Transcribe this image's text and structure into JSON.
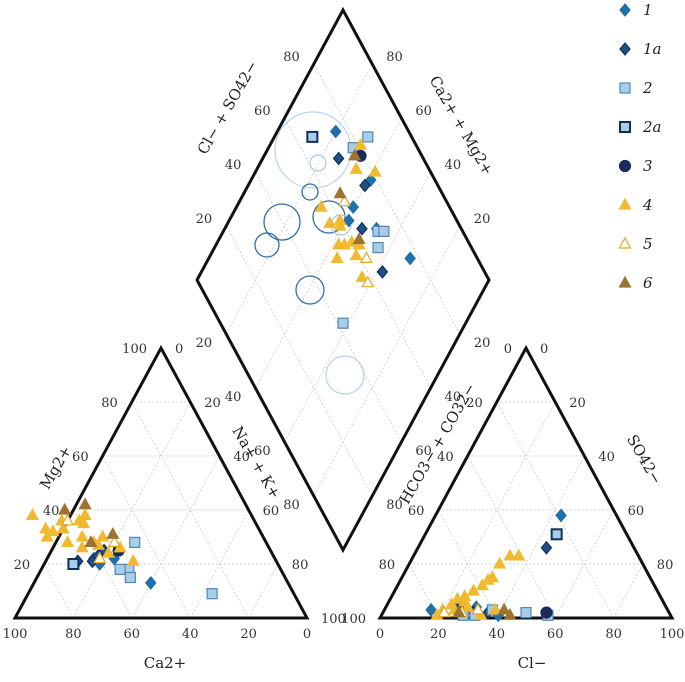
{
  "chart_data": {
    "type": "scatter",
    "diagram": "piper",
    "axis_labels": {
      "mg": "Mg2+",
      "ca": "Ca2+",
      "na_k": "Na+ + K+",
      "hco3_co3": "HCO3− + CO32−",
      "cl": "Cl−",
      "so4": "SO42−",
      "diamond_left": "Cl− + SO42−",
      "diamond_right": "Ca2+ + Mg2+"
    },
    "cation_triangle": {
      "x_ticks": [
        "100",
        "80",
        "60",
        "40",
        "20",
        "0"
      ],
      "left_ticks": [
        "20",
        "40",
        "60",
        "80",
        "100"
      ],
      "right_ticks": [
        "0",
        "20",
        "40",
        "60",
        "80",
        "100"
      ],
      "note": "points given as [Ca2+ %, Mg2+ %]"
    },
    "anion_triangle": {
      "x_ticks": [
        "0",
        "20",
        "40",
        "60",
        "80",
        "100"
      ],
      "left_ticks": [
        "100",
        "80",
        "60",
        "40",
        "20",
        "0"
      ],
      "right_ticks": [
        "100",
        "80",
        "60",
        "40",
        "20",
        "0"
      ],
      "note": "points given as [Cl- %, SO4 2- %]"
    },
    "diamond": {
      "upper_left_ticks": [
        "80",
        "60",
        "40",
        "20"
      ],
      "upper_right_ticks": [
        "80",
        "60",
        "40",
        "20"
      ],
      "lower_left_ticks": [
        "20",
        "40",
        "60",
        "80"
      ],
      "lower_right_ticks": [
        "20",
        "40",
        "60",
        "80"
      ],
      "note": "points given as [Ca+Mg %, Cl+SO4 %]"
    },
    "legend_position": "top-right",
    "series": [
      {
        "name": "1",
        "marker": "diamond",
        "fill": "#1f6fa8",
        "stroke": "#1f6fa8",
        "cation": [
          [
            55,
            22
          ],
          [
            62,
            22
          ],
          [
            47,
            13
          ],
          [
            61,
            20
          ]
        ],
        "anion": [
          [
            43,
            38
          ],
          [
            31,
            4
          ],
          [
            40,
            1
          ],
          [
            16,
            3
          ],
          [
            25,
            4
          ]
        ],
        "diamond": [
          [
            75,
            80
          ],
          [
            67,
            60
          ],
          [
            77,
            31
          ],
          [
            63,
            59
          ],
          [
            71,
            48
          ],
          [
            78,
            59
          ]
        ]
      },
      {
        "name": "1a",
        "marker": "diamond",
        "fill": "#1f4f87",
        "stroke": "#102f57",
        "cation": [
          [
            57,
            25
          ],
          [
            63,
            21
          ],
          [
            60,
            23
          ],
          [
            68,
            21
          ]
        ],
        "anion": [
          [
            44,
            26
          ],
          [
            24,
            4
          ],
          [
            36,
            2
          ],
          [
            31,
            2
          ]
        ],
        "diamond": [
          [
            71,
            74
          ],
          [
            66,
            53
          ],
          [
            75,
            60
          ],
          [
            65,
            38
          ]
        ]
      },
      {
        "name": "2",
        "marker": "square",
        "fill": "#a8cde8",
        "stroke": "#4f87b8",
        "cation": [
          [
            28,
            9
          ],
          [
            45,
            28
          ],
          [
            52,
            18
          ],
          [
            55,
            18
          ],
          [
            53,
            15
          ]
        ],
        "anion": [
          [
            49,
            2
          ],
          [
            37,
            3
          ],
          [
            57,
            1
          ],
          [
            32,
            1
          ],
          [
            28,
            1
          ]
        ],
        "diamond": [
          [
            78,
            71
          ],
          [
            85,
            68
          ],
          [
            71,
            47
          ],
          [
            68,
            44
          ],
          [
            73,
            45
          ],
          [
            42,
            42
          ]
        ]
      },
      {
        "name": "2a",
        "marker": "square",
        "fill": "#a8cde8",
        "stroke": "#102f57",
        "stroke_width": 2,
        "cation": [
          [
            70,
            20
          ]
        ],
        "anion": [
          [
            45,
            31
          ]
        ],
        "diamond": [
          [
            66,
            87
          ]
        ]
      },
      {
        "name": "3",
        "marker": "circle",
        "fill": "#1b2a5a",
        "stroke": "#1b2a5a",
        "cation": [
          [
            52,
            25
          ]
        ],
        "anion": [
          [
            56,
            2
          ]
        ],
        "diamond": [
          [
            79,
            67
          ]
        ]
      },
      {
        "name": "4",
        "marker": "triangle",
        "fill": "#f0b92e",
        "stroke": "#f0b92e",
        "cation": [
          [
            75,
            38
          ],
          [
            67,
            33
          ],
          [
            59,
            35
          ],
          [
            71,
            32
          ],
          [
            62,
            30
          ],
          [
            68,
            28
          ],
          [
            55,
            30
          ],
          [
            58,
            27
          ],
          [
            49,
            21
          ],
          [
            51,
            26
          ],
          [
            64,
            26
          ],
          [
            74,
            30
          ],
          [
            57,
            38
          ],
          [
            66,
            36
          ],
          [
            59,
            28
          ],
          [
            60,
            36
          ],
          [
            56,
            24
          ],
          [
            73,
            33
          ]
        ],
        "anion": [
          [
            36,
            23
          ],
          [
            31,
            20
          ],
          [
            31,
            15
          ],
          [
            29,
            12
          ],
          [
            27,
            10
          ],
          [
            25,
            8
          ],
          [
            26,
            6
          ],
          [
            24,
            3
          ],
          [
            22,
            5
          ],
          [
            19,
            1
          ],
          [
            34,
            1
          ],
          [
            38,
            3
          ],
          [
            20,
            3
          ],
          [
            28,
            4
          ],
          [
            33,
            23
          ],
          [
            30,
            14
          ],
          [
            23,
            7
          ]
        ],
        "diamond": [
          [
            56,
            71
          ],
          [
            56,
            65
          ],
          [
            55,
            58
          ],
          [
            57,
            56
          ],
          [
            60,
            54
          ],
          [
            59,
            50
          ],
          [
            52,
            56
          ],
          [
            57,
            44
          ],
          [
            60,
            62
          ],
          [
            81,
            59
          ],
          [
            81,
            69
          ],
          [
            75,
            66
          ],
          [
            62,
            51
          ],
          [
            59,
            61
          ]
        ]
      },
      {
        "name": "5",
        "marker": "triangle-open",
        "fill": "#ffffff",
        "stroke": "#e5a820",
        "cation": [
          [
            64,
            36
          ],
          [
            52,
            28
          ],
          [
            60,
            22
          ]
        ],
        "anion": [
          [
            21,
            2
          ],
          [
            27,
            2
          ],
          [
            32,
            3
          ]
        ],
        "diamond": [
          [
            62,
            46
          ],
          [
            65,
            64
          ],
          [
            58,
            41
          ]
        ]
      },
      {
        "name": "6",
        "marker": "triangle",
        "fill": "#9c7330",
        "stroke": "#9c7330",
        "cation": [
          [
            55,
            42
          ],
          [
            51,
            31
          ],
          [
            63,
            40
          ],
          [
            60,
            28
          ]
        ],
        "anion": [
          [
            26,
            2
          ],
          [
            41,
            3
          ],
          [
            44,
            1
          ]
        ],
        "diamond": [
          [
            63,
            52
          ],
          [
            77,
            69
          ],
          [
            65,
            67
          ]
        ]
      }
    ]
  }
}
